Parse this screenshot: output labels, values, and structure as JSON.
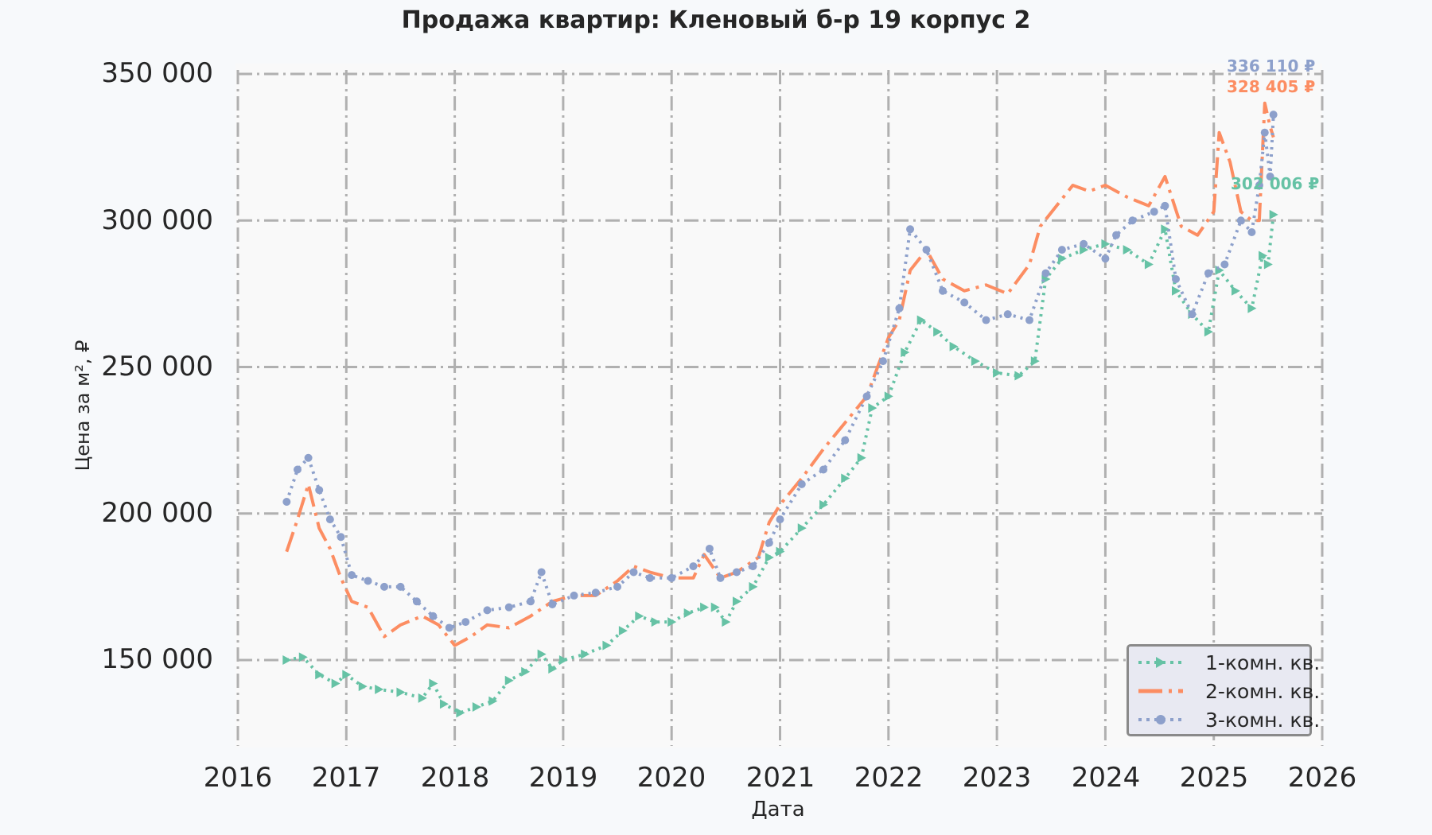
{
  "chart_data": {
    "type": "line",
    "title": "Продажа квартир: Кленовый б-р 19 корпус 2",
    "xlabel": "Дата",
    "ylabel": "Цена за м², ₽",
    "xlim": [
      2016,
      2026
    ],
    "ylim": [
      120000,
      350000
    ],
    "x_ticks": [
      "2016",
      "2017",
      "2018",
      "2019",
      "2020",
      "2021",
      "2022",
      "2023",
      "2024",
      "2025",
      "2026"
    ],
    "y_ticks": [
      "150 000",
      "200 000",
      "250 000",
      "300 000",
      "350 000"
    ],
    "y_tick_values": [
      150000,
      200000,
      250000,
      300000,
      350000
    ],
    "grid": true,
    "legend_position": "lower right",
    "series": [
      {
        "name": "1-комн. кв.",
        "color": "#66c2a5",
        "style": "dotted-triangle",
        "end_label": "302 006 ₽",
        "x": [
          2016.45,
          2016.6,
          2016.75,
          2016.9,
          2017.0,
          2017.15,
          2017.3,
          2017.5,
          2017.7,
          2017.8,
          2017.9,
          2018.05,
          2018.2,
          2018.35,
          2018.5,
          2018.65,
          2018.8,
          2018.9,
          2019.0,
          2019.2,
          2019.4,
          2019.55,
          2019.7,
          2019.85,
          2020.0,
          2020.15,
          2020.3,
          2020.4,
          2020.5,
          2020.6,
          2020.75,
          2020.9,
          2021.0,
          2021.2,
          2021.4,
          2021.6,
          2021.75,
          2021.85,
          2022.0,
          2022.15,
          2022.3,
          2022.45,
          2022.6,
          2022.8,
          2023.0,
          2023.2,
          2023.35,
          2023.45,
          2023.6,
          2023.8,
          2024.0,
          2024.2,
          2024.4,
          2024.55,
          2024.65,
          2024.8,
          2024.95,
          2025.05,
          2025.2,
          2025.35,
          2025.45,
          2025.5,
          2025.55
        ],
        "values": [
          150000,
          151000,
          145000,
          142000,
          145000,
          141000,
          140000,
          139000,
          137000,
          142000,
          135000,
          132000,
          134000,
          136000,
          143000,
          146000,
          152000,
          147000,
          150000,
          152000,
          155000,
          160000,
          165000,
          163000,
          163000,
          166000,
          168000,
          168000,
          163000,
          170000,
          175000,
          185000,
          187000,
          195000,
          203000,
          212000,
          219000,
          236000,
          240000,
          255000,
          266000,
          262000,
          257000,
          252000,
          248000,
          247000,
          252000,
          280000,
          287000,
          290000,
          292000,
          290000,
          285000,
          297000,
          276000,
          268000,
          262000,
          283000,
          276000,
          270000,
          288000,
          285000,
          302006
        ]
      },
      {
        "name": "2-комн. кв.",
        "color": "#fc8d62",
        "style": "dash-dot",
        "end_label": "328 405 ₽",
        "x": [
          2016.45,
          2016.55,
          2016.65,
          2016.75,
          2016.85,
          2016.95,
          2017.05,
          2017.2,
          2017.35,
          2017.5,
          2017.7,
          2017.85,
          2018.0,
          2018.15,
          2018.3,
          2018.5,
          2018.7,
          2018.9,
          2019.1,
          2019.3,
          2019.5,
          2019.65,
          2019.8,
          2020.0,
          2020.2,
          2020.3,
          2020.45,
          2020.6,
          2020.8,
          2020.9,
          2021.0,
          2021.2,
          2021.4,
          2021.6,
          2021.8,
          2022.0,
          2022.1,
          2022.2,
          2022.35,
          2022.5,
          2022.7,
          2022.9,
          2023.1,
          2023.3,
          2023.4,
          2023.55,
          2023.7,
          2023.85,
          2024.0,
          2024.2,
          2024.4,
          2024.55,
          2024.7,
          2024.85,
          2025.0,
          2025.05,
          2025.15,
          2025.25,
          2025.35,
          2025.42,
          2025.47,
          2025.52,
          2025.55
        ],
        "values": [
          187000,
          198000,
          210000,
          195000,
          188000,
          178000,
          170000,
          168000,
          158000,
          162000,
          165000,
          162000,
          155000,
          158000,
          162000,
          161000,
          165000,
          170000,
          172000,
          172000,
          177000,
          182000,
          180000,
          178000,
          178000,
          186000,
          178000,
          180000,
          185000,
          197000,
          203000,
          212000,
          222000,
          231000,
          240000,
          260000,
          266000,
          283000,
          290000,
          280000,
          276000,
          278000,
          275000,
          285000,
          298000,
          305000,
          312000,
          310000,
          312000,
          308000,
          305000,
          315000,
          298000,
          295000,
          303000,
          330000,
          320000,
          303000,
          300000,
          300000,
          340000,
          332000,
          328405
        ]
      },
      {
        "name": "3-комн. кв.",
        "color": "#8da0cb",
        "style": "dotted-circle",
        "end_label": "336 110 ₽",
        "x": [
          2016.45,
          2016.55,
          2016.65,
          2016.75,
          2016.85,
          2016.95,
          2017.05,
          2017.2,
          2017.35,
          2017.5,
          2017.65,
          2017.8,
          2017.95,
          2018.1,
          2018.3,
          2018.5,
          2018.7,
          2018.8,
          2018.9,
          2019.1,
          2019.3,
          2019.5,
          2019.65,
          2019.8,
          2020.0,
          2020.2,
          2020.35,
          2020.45,
          2020.6,
          2020.75,
          2020.9,
          2021.0,
          2021.2,
          2021.4,
          2021.6,
          2021.8,
          2021.95,
          2022.1,
          2022.2,
          2022.35,
          2022.5,
          2022.7,
          2022.9,
          2023.1,
          2023.3,
          2023.45,
          2023.6,
          2023.8,
          2024.0,
          2024.1,
          2024.25,
          2024.45,
          2024.55,
          2024.65,
          2024.8,
          2024.95,
          2025.1,
          2025.25,
          2025.35,
          2025.42,
          2025.47,
          2025.52,
          2025.55
        ],
        "values": [
          204000,
          215000,
          219000,
          208000,
          198000,
          192000,
          179000,
          177000,
          175000,
          175000,
          170000,
          165000,
          161000,
          163000,
          167000,
          168000,
          170000,
          180000,
          169000,
          172000,
          173000,
          175000,
          180000,
          178000,
          178000,
          182000,
          188000,
          178000,
          180000,
          182000,
          190000,
          198000,
          210000,
          215000,
          225000,
          240000,
          252000,
          270000,
          297000,
          290000,
          276000,
          272000,
          266000,
          268000,
          266000,
          282000,
          290000,
          292000,
          287000,
          295000,
          300000,
          303000,
          305000,
          280000,
          268000,
          282000,
          285000,
          300000,
          296000,
          312000,
          330000,
          315000,
          336110
        ]
      }
    ]
  },
  "legend": {
    "items": [
      {
        "label": "1-комн. кв."
      },
      {
        "label": "2-комн. кв."
      },
      {
        "label": "3-комн. кв."
      }
    ]
  }
}
